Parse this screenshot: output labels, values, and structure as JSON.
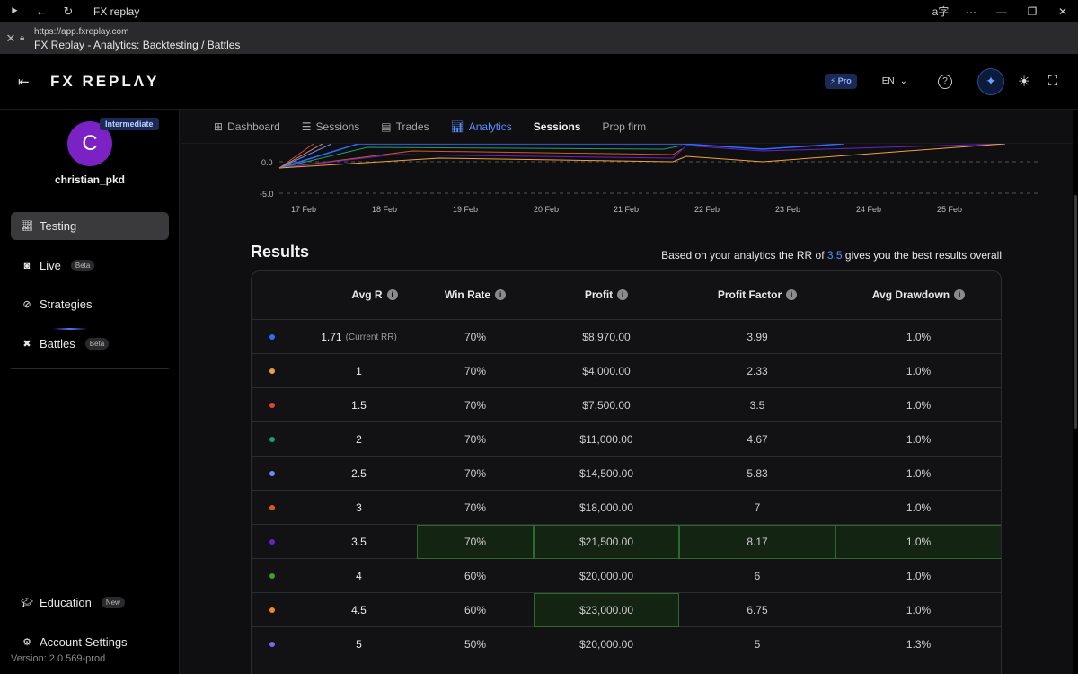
{
  "browser": {
    "window_title": "FX replay",
    "url": "https://app.fxreplay.com",
    "page_title": "FX Replay - Analytics: Backtesting / Battles"
  },
  "header": {
    "logo": "FX REPLΛY",
    "pro_label": "⚡ Pro",
    "language": "EN"
  },
  "sidebar": {
    "avatar_letter": "C",
    "level": "Intermediate",
    "username": "christian_pkd",
    "items": [
      {
        "label": "Testing",
        "icon": "chart-line-icon"
      },
      {
        "label": "Live",
        "badge": "Beta",
        "icon": "live-icon"
      },
      {
        "label": "Strategies",
        "icon": "compass-icon"
      },
      {
        "label": "Battles",
        "badge": "Beta",
        "icon": "swords-icon"
      }
    ],
    "bottom_items": [
      {
        "label": "Education",
        "badge": "New",
        "icon": "graduation-cap-icon"
      },
      {
        "label": "Account Settings",
        "icon": "gear-icon"
      }
    ],
    "version": "Version: 2.0.569-prod"
  },
  "tabs": [
    {
      "label": "Dashboard",
      "icon": "grid-icon"
    },
    {
      "label": "Sessions",
      "icon": "list-icon"
    },
    {
      "label": "Trades",
      "icon": "document-icon"
    },
    {
      "label": "Analytics",
      "icon": "bar-chart-icon"
    },
    {
      "label": "Sessions"
    },
    {
      "label": "Prop firm"
    }
  ],
  "chart": {
    "y_ticks": [
      "0.0",
      "-5.0"
    ],
    "x_ticks": [
      "17 Feb",
      "18 Feb",
      "19 Feb",
      "20 Feb",
      "21 Feb",
      "22 Feb",
      "23 Feb",
      "24 Feb",
      "25 Feb"
    ]
  },
  "results": {
    "title": "Results",
    "note_prefix": "Based on your analytics the RR of",
    "note_value": "3.5",
    "note_suffix": "gives you the best results overall",
    "columns": [
      "Avg R",
      "Win Rate",
      "Profit",
      "Profit Factor",
      "Avg Drawdown"
    ],
    "current_label": "(Current RR)",
    "rows": [
      {
        "color": "#2f6bff",
        "avg_r": "1.71",
        "win_rate": "70%",
        "profit": "$8,970.00",
        "profit_factor": "3.99",
        "avg_drawdown": "1.0%"
      },
      {
        "color": "#f0a23a",
        "avg_r": "1",
        "win_rate": "70%",
        "profit": "$4,000.00",
        "profit_factor": "2.33",
        "avg_drawdown": "1.0%"
      },
      {
        "color": "#e0433a",
        "avg_r": "1.5",
        "win_rate": "70%",
        "profit": "$7,500.00",
        "profit_factor": "3.5",
        "avg_drawdown": "1.0%"
      },
      {
        "color": "#1f9e6a",
        "avg_r": "2",
        "win_rate": "70%",
        "profit": "$11,000.00",
        "profit_factor": "4.67",
        "avg_drawdown": "1.0%"
      },
      {
        "color": "#6b8cf0",
        "avg_r": "2.5",
        "win_rate": "70%",
        "profit": "$14,500.00",
        "profit_factor": "5.83",
        "avg_drawdown": "1.0%"
      },
      {
        "color": "#d65a1a",
        "avg_r": "3",
        "win_rate": "70%",
        "profit": "$18,000.00",
        "profit_factor": "7",
        "avg_drawdown": "1.0%"
      },
      {
        "color": "#6a22c8",
        "avg_r": "3.5",
        "win_rate": "70%",
        "profit": "$21,500.00",
        "profit_factor": "8.17",
        "avg_drawdown": "1.0%"
      },
      {
        "color": "#3aa02a",
        "avg_r": "4",
        "win_rate": "60%",
        "profit": "$20,000.00",
        "profit_factor": "6",
        "avg_drawdown": "1.0%"
      },
      {
        "color": "#f28a2a",
        "avg_r": "4.5",
        "win_rate": "60%",
        "profit": "$23,000.00",
        "profit_factor": "6.75",
        "avg_drawdown": "1.0%"
      },
      {
        "color": "#7a6ae0",
        "avg_r": "5",
        "win_rate": "50%",
        "profit": "$20,000.00",
        "profit_factor": "5",
        "avg_drawdown": "1.3%"
      }
    ]
  }
}
